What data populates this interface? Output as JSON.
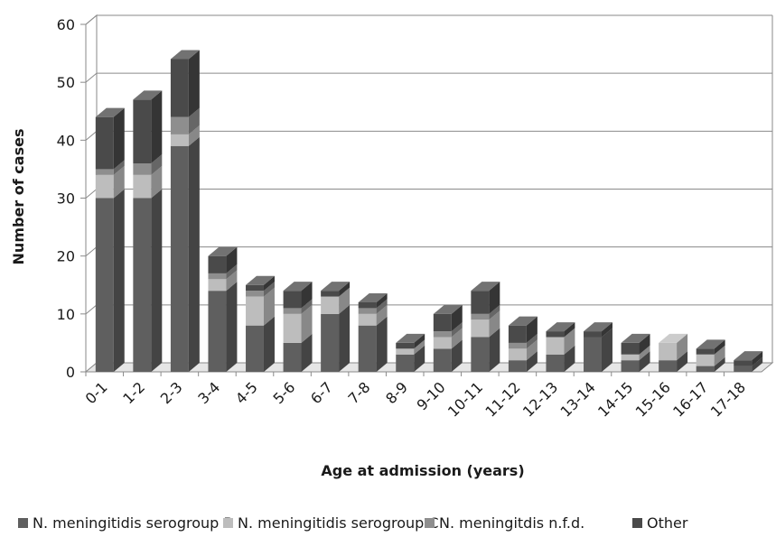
{
  "chart_data": {
    "type": "bar",
    "stacked": true,
    "style": "3d-column",
    "xlabel": "Age at admission (years)",
    "ylabel": "Number of cases",
    "ylim": [
      0,
      60
    ],
    "yticks": [
      0,
      10,
      20,
      30,
      40,
      50,
      60
    ],
    "grid": true,
    "legend_position": "bottom",
    "categories": [
      "0-1",
      "1-2",
      "2-3",
      "3-4",
      "4-5",
      "5-6",
      "6-7",
      "7-8",
      "8-9",
      "9-10",
      "10-11",
      "11-12",
      "12-13",
      "13-14",
      "14-15",
      "15-16",
      "16-17",
      "17-18"
    ],
    "series": [
      {
        "name": "N. meningitidis serogroup B",
        "color": "#5f5f5f",
        "values": [
          30,
          30,
          39,
          14,
          8,
          5,
          10,
          8,
          3,
          4,
          6,
          2,
          3,
          6,
          2,
          2,
          1,
          1
        ]
      },
      {
        "name": "N. meningitidis serogroup C",
        "color": "#bdbdbd",
        "values": [
          4,
          4,
          2,
          2,
          5,
          5,
          3,
          2,
          1,
          2,
          3,
          2,
          3,
          0,
          1,
          3,
          2,
          0
        ]
      },
      {
        "name": "N. meningitdis n.f.d.",
        "color": "#8e8e8e",
        "values": [
          1,
          2,
          3,
          1,
          1,
          1,
          0,
          1,
          0,
          1,
          1,
          1,
          0,
          0,
          0,
          0,
          0,
          0
        ]
      },
      {
        "name": "Other",
        "color": "#4a4a4a",
        "values": [
          9,
          11,
          10,
          3,
          1,
          3,
          1,
          1,
          1,
          3,
          4,
          3,
          1,
          1,
          2,
          0,
          1,
          1
        ]
      }
    ]
  }
}
